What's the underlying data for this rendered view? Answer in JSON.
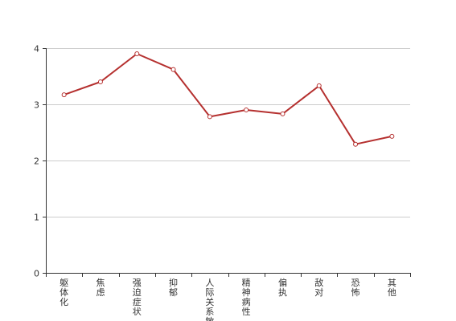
{
  "chart_data": {
    "type": "line",
    "categories": [
      "躯体化",
      "焦虑",
      "强迫症状",
      "抑郁",
      "人际关系敏感",
      "精神病性",
      "偏执",
      "敌对",
      "恐怖",
      "其他"
    ],
    "series": [
      {
        "values": [
          3.17,
          3.4,
          3.9,
          3.62,
          2.78,
          2.9,
          2.83,
          3.33,
          2.29,
          2.43
        ]
      }
    ],
    "yticks": [
      "0",
      "1",
      "2",
      "3",
      "4"
    ],
    "ylim": [
      0,
      4
    ],
    "grid": true,
    "legend": "none",
    "colors": {
      "line": "#b5302f",
      "grid": "#cccccc",
      "axis": "#333333"
    }
  }
}
